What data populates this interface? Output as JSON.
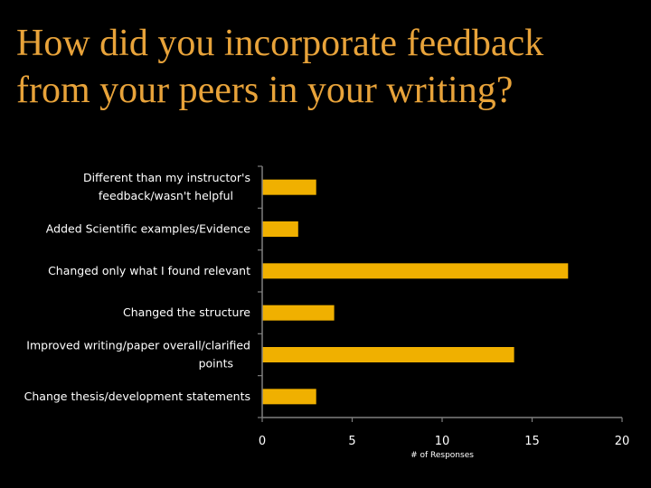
{
  "slide": {
    "title_line1": "How did you incorporate feedback",
    "title_line2": "from your peers in your writing?"
  },
  "colors": {
    "background": "#000000",
    "title": "#E8A33A",
    "bar": "#F0B000",
    "axis": "#7F7F7F",
    "text": "#FFFFFF"
  },
  "chart_data": {
    "type": "bar",
    "orientation": "horizontal",
    "title": "",
    "xlabel": "# of Responses",
    "ylabel": "",
    "categories": [
      [
        "Different than my instructor's",
        "feedback/wasn't helpful"
      ],
      [
        "Added Scientific examples/Evidence"
      ],
      [
        "Changed only what I found relevant"
      ],
      [
        "Changed the structure"
      ],
      [
        "Improved writing/paper overall/clarified",
        "points"
      ],
      [
        "Change thesis/development statements"
      ]
    ],
    "values": [
      3,
      2,
      17,
      4,
      14,
      3
    ],
    "xlim": [
      0,
      20
    ],
    "xticks": [
      0,
      5,
      10,
      15,
      20
    ],
    "grid": false,
    "legend": "none"
  }
}
